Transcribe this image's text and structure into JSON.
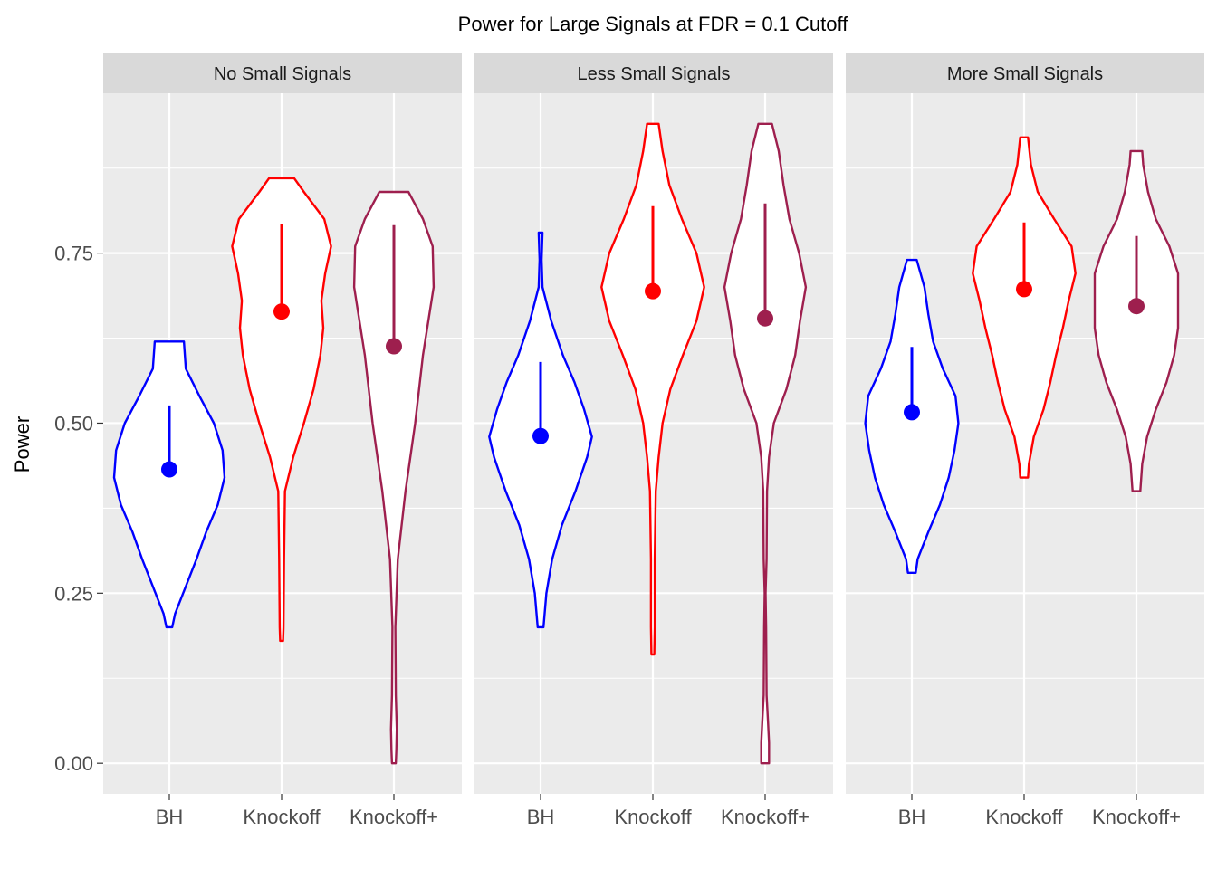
{
  "chart_data": {
    "type": "violin",
    "title": "Power for Large Signals at FDR = 0.1 Cutoff",
    "ylabel": "Power",
    "xlabel": "",
    "ylim": [
      -0.045,
      0.985
    ],
    "y_ticks": [
      0,
      0.25,
      0.5,
      0.75
    ],
    "y_tick_labels": [
      "0.00",
      "0.25",
      "0.50",
      "0.75"
    ],
    "categories": [
      "BH",
      "Knockoff",
      "Knockoff+"
    ],
    "colors": {
      "BH": "#0000FF",
      "Knockoff": "#FF0000",
      "Knockoff+": "#9E1F4E"
    },
    "grid": true,
    "facets": [
      {
        "label": "No Small Signals",
        "violins": [
          {
            "category": "BH",
            "median": 0.432,
            "q3": 0.526,
            "profile": [
              [
                0.2,
                0.03
              ],
              [
                0.22,
                0.06
              ],
              [
                0.26,
                0.17
              ],
              [
                0.3,
                0.28
              ],
              [
                0.34,
                0.38
              ],
              [
                0.38,
                0.5
              ],
              [
                0.42,
                0.57
              ],
              [
                0.46,
                0.55
              ],
              [
                0.5,
                0.46
              ],
              [
                0.54,
                0.31
              ],
              [
                0.58,
                0.17
              ],
              [
                0.62,
                0.15
              ]
            ]
          },
          {
            "category": "Knockoff",
            "median": 0.664,
            "q3": 0.792,
            "profile": [
              [
                0.18,
                0.015
              ],
              [
                0.2,
                0.02
              ],
              [
                0.3,
                0.025
              ],
              [
                0.4,
                0.035
              ],
              [
                0.45,
                0.12
              ],
              [
                0.5,
                0.23
              ],
              [
                0.55,
                0.33
              ],
              [
                0.6,
                0.4
              ],
              [
                0.64,
                0.43
              ],
              [
                0.68,
                0.41
              ],
              [
                0.72,
                0.45
              ],
              [
                0.76,
                0.51
              ],
              [
                0.8,
                0.44
              ],
              [
                0.84,
                0.23
              ],
              [
                0.86,
                0.13
              ]
            ]
          },
          {
            "category": "Knockoff+",
            "median": 0.613,
            "q3": 0.791,
            "profile": [
              [
                0.0,
                0.02
              ],
              [
                0.02,
                0.025
              ],
              [
                0.05,
                0.03
              ],
              [
                0.1,
                0.02
              ],
              [
                0.2,
                0.015
              ],
              [
                0.3,
                0.04
              ],
              [
                0.4,
                0.12
              ],
              [
                0.5,
                0.22
              ],
              [
                0.6,
                0.3
              ],
              [
                0.7,
                0.41
              ],
              [
                0.76,
                0.4
              ],
              [
                0.8,
                0.3
              ],
              [
                0.84,
                0.15
              ]
            ]
          }
        ]
      },
      {
        "label": "Less Small Signals",
        "violins": [
          {
            "category": "BH",
            "median": 0.481,
            "q3": 0.59,
            "profile": [
              [
                0.2,
                0.03
              ],
              [
                0.25,
                0.06
              ],
              [
                0.3,
                0.12
              ],
              [
                0.35,
                0.22
              ],
              [
                0.4,
                0.36
              ],
              [
                0.45,
                0.48
              ],
              [
                0.48,
                0.53
              ],
              [
                0.52,
                0.45
              ],
              [
                0.56,
                0.35
              ],
              [
                0.6,
                0.23
              ],
              [
                0.65,
                0.11
              ],
              [
                0.7,
                0.02
              ],
              [
                0.74,
                0.01
              ],
              [
                0.78,
                0.02
              ]
            ]
          },
          {
            "category": "Knockoff",
            "median": 0.694,
            "q3": 0.819,
            "profile": [
              [
                0.16,
                0.015
              ],
              [
                0.2,
                0.02
              ],
              [
                0.3,
                0.02
              ],
              [
                0.4,
                0.03
              ],
              [
                0.45,
                0.06
              ],
              [
                0.5,
                0.1
              ],
              [
                0.55,
                0.18
              ],
              [
                0.6,
                0.31
              ],
              [
                0.65,
                0.45
              ],
              [
                0.7,
                0.53
              ],
              [
                0.75,
                0.45
              ],
              [
                0.8,
                0.3
              ],
              [
                0.85,
                0.17
              ],
              [
                0.9,
                0.1
              ],
              [
                0.94,
                0.06
              ]
            ]
          },
          {
            "category": "Knockoff+",
            "median": 0.654,
            "q3": 0.823,
            "profile": [
              [
                0.0,
                0.04
              ],
              [
                0.03,
                0.04
              ],
              [
                0.06,
                0.03
              ],
              [
                0.1,
                0.015
              ],
              [
                0.2,
                0.01
              ],
              [
                0.25,
                0.005
              ],
              [
                0.3,
                0.015
              ],
              [
                0.4,
                0.02
              ],
              [
                0.45,
                0.04
              ],
              [
                0.5,
                0.09
              ],
              [
                0.55,
                0.22
              ],
              [
                0.6,
                0.31
              ],
              [
                0.65,
                0.36
              ],
              [
                0.7,
                0.42
              ],
              [
                0.75,
                0.35
              ],
              [
                0.8,
                0.25
              ],
              [
                0.85,
                0.19
              ],
              [
                0.9,
                0.14
              ],
              [
                0.94,
                0.07
              ]
            ]
          }
        ]
      },
      {
        "label": "More Small Signals",
        "violins": [
          {
            "category": "BH",
            "median": 0.516,
            "q3": 0.612,
            "profile": [
              [
                0.28,
                0.04
              ],
              [
                0.3,
                0.06
              ],
              [
                0.34,
                0.17
              ],
              [
                0.38,
                0.29
              ],
              [
                0.42,
                0.38
              ],
              [
                0.46,
                0.44
              ],
              [
                0.5,
                0.48
              ],
              [
                0.54,
                0.45
              ],
              [
                0.58,
                0.32
              ],
              [
                0.62,
                0.22
              ],
              [
                0.66,
                0.17
              ],
              [
                0.7,
                0.13
              ],
              [
                0.74,
                0.05
              ]
            ]
          },
          {
            "category": "Knockoff",
            "median": 0.697,
            "q3": 0.795,
            "profile": [
              [
                0.42,
                0.04
              ],
              [
                0.44,
                0.05
              ],
              [
                0.48,
                0.1
              ],
              [
                0.52,
                0.2
              ],
              [
                0.56,
                0.27
              ],
              [
                0.6,
                0.33
              ],
              [
                0.64,
                0.4
              ],
              [
                0.68,
                0.46
              ],
              [
                0.72,
                0.53
              ],
              [
                0.76,
                0.49
              ],
              [
                0.8,
                0.31
              ],
              [
                0.84,
                0.14
              ],
              [
                0.88,
                0.07
              ],
              [
                0.92,
                0.04
              ]
            ]
          },
          {
            "category": "Knockoff+",
            "median": 0.672,
            "q3": 0.775,
            "profile": [
              [
                0.4,
                0.04
              ],
              [
                0.44,
                0.06
              ],
              [
                0.48,
                0.11
              ],
              [
                0.52,
                0.2
              ],
              [
                0.56,
                0.31
              ],
              [
                0.6,
                0.39
              ],
              [
                0.64,
                0.43
              ],
              [
                0.68,
                0.43
              ],
              [
                0.72,
                0.43
              ],
              [
                0.76,
                0.34
              ],
              [
                0.8,
                0.2
              ],
              [
                0.84,
                0.12
              ],
              [
                0.88,
                0.07
              ],
              [
                0.9,
                0.06
              ]
            ]
          }
        ]
      }
    ]
  }
}
